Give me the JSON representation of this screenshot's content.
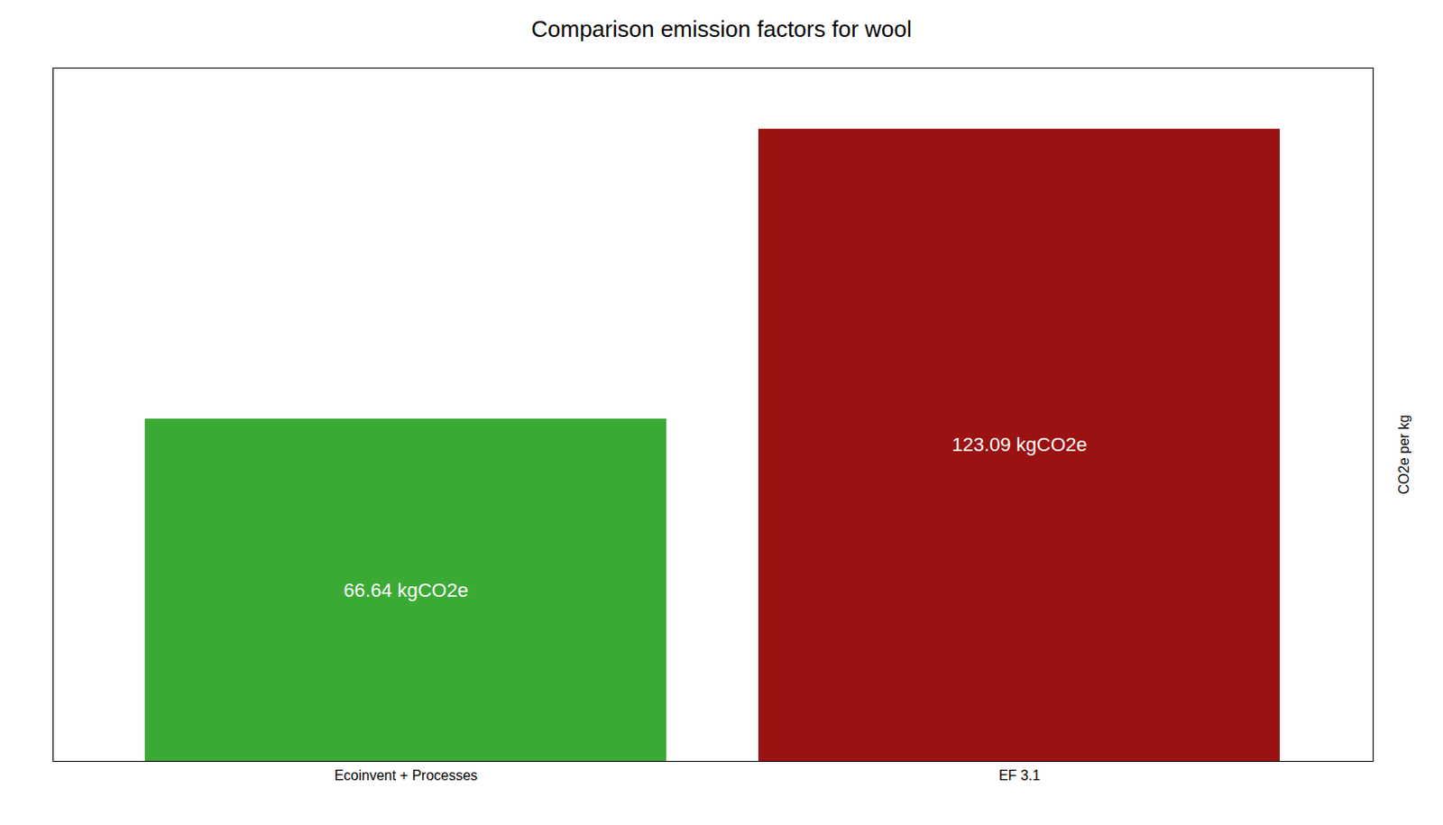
{
  "chart_data": {
    "type": "bar",
    "title": "Comparison emission factors for wool",
    "categories": [
      "Ecoinvent + Processes",
      "EF 3.1"
    ],
    "values": [
      66.64,
      123.09
    ],
    "value_labels": [
      "66.64 kgCO2e",
      "123.09 kgCO2e"
    ],
    "colors": [
      "#3aaa35",
      "#9b1212"
    ],
    "ylabel": "CO2e per kg",
    "ylim": [
      0,
      135
    ],
    "data_labels": true,
    "tick_labels": "x",
    "grid": false
  }
}
